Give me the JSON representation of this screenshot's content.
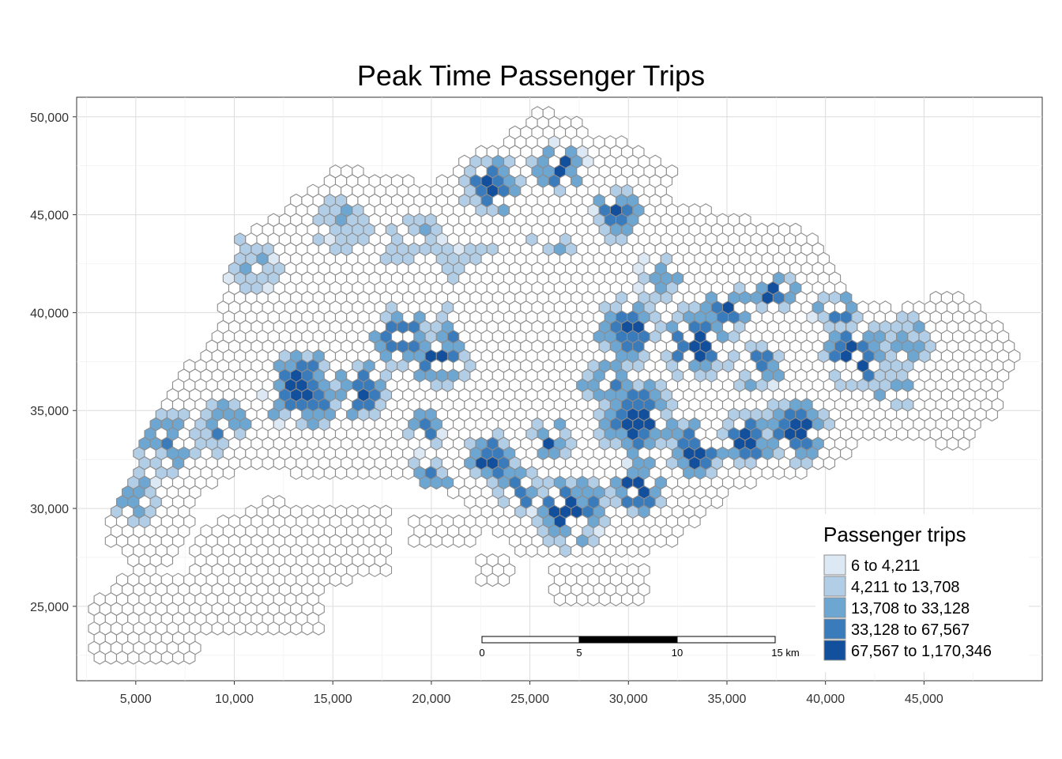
{
  "chart_data": {
    "type": "heatmap",
    "title": "Peak Time Passenger Trips",
    "x_ticks": [
      "5,000",
      "10,000",
      "15,000",
      "20,000",
      "25,000",
      "30,000",
      "35,000",
      "40,000",
      "45,000"
    ],
    "x_tick_values": [
      5000,
      10000,
      15000,
      20000,
      25000,
      30000,
      35000,
      40000,
      45000
    ],
    "y_ticks": [
      "25,000",
      "30,000",
      "35,000",
      "40,000",
      "45,000",
      "50,000"
    ],
    "y_tick_values": [
      25000,
      30000,
      35000,
      40000,
      45000,
      50000
    ],
    "xlim": [
      2000,
      51000
    ],
    "ylim": [
      21200,
      51000
    ],
    "grid": true,
    "legend": {
      "title": "Passenger trips",
      "position": "bottom-right",
      "classes": [
        {
          "label": "6 to 4,211",
          "color": "#dce9f5"
        },
        {
          "label": "4,211 to 13,708",
          "color": "#b2cde6"
        },
        {
          "label": "13,708 to 33,128",
          "color": "#6ea6d2"
        },
        {
          "label": "33,128 to 67,567",
          "color": "#3a7bbb"
        },
        {
          "label": "67,567 to 1,170,346",
          "color": "#124f9d"
        }
      ],
      "no_data_color": "#ffffff"
    },
    "scale_bar": {
      "labels": [
        "0",
        "5",
        "10",
        "15 km"
      ],
      "segment_km": 5
    },
    "hex_cells": "cells of a hexagonal grid covering Singapore land area; fill by passenger-trip class"
  }
}
